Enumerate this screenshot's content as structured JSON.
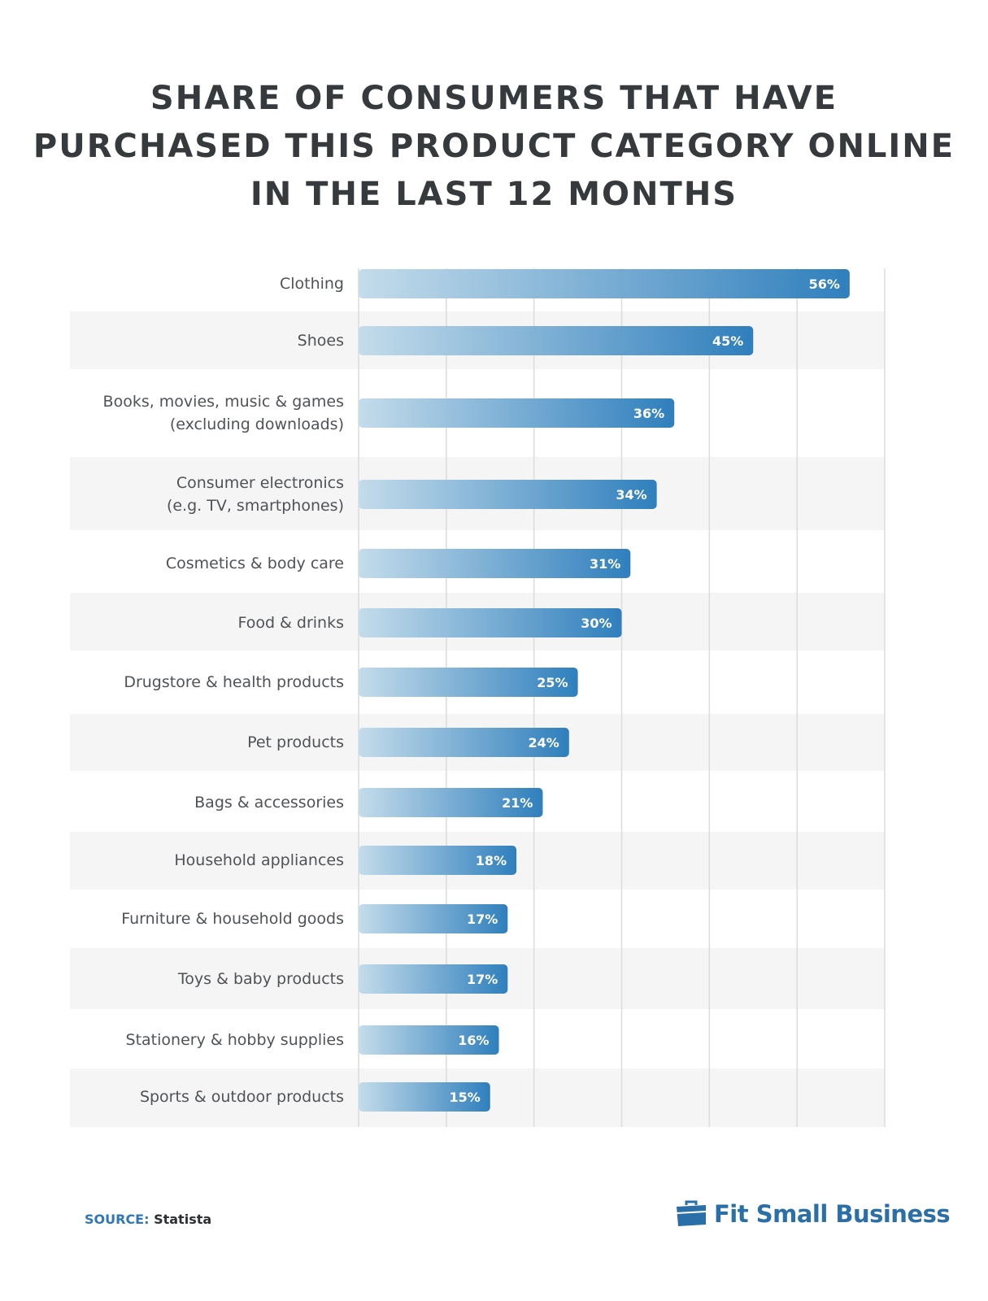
{
  "chart_data": {
    "type": "bar",
    "orientation": "horizontal",
    "title_lines": [
      "SHARE OF CONSUMERS THAT HAVE",
      "PURCHASED THIS PRODUCT CATEGORY ONLINE",
      "IN THE LAST 12 MONTHS"
    ],
    "categories": [
      [
        "Clothing"
      ],
      [
        "Shoes"
      ],
      [
        "Books, movies, music & games",
        "(excluding downloads)"
      ],
      [
        "Consumer electronics",
        "(e.g. TV, smartphones)"
      ],
      [
        "Cosmetics & body care"
      ],
      [
        "Food & drinks"
      ],
      [
        "Drugstore & health products"
      ],
      [
        "Pet products"
      ],
      [
        "Bags & accessories"
      ],
      [
        "Household appliances"
      ],
      [
        "Furniture & household goods"
      ],
      [
        "Toys & baby products"
      ],
      [
        "Stationery & hobby supplies"
      ],
      [
        "Sports & outdoor products"
      ]
    ],
    "values": [
      56,
      45,
      36,
      34,
      31,
      30,
      25,
      24,
      21,
      18,
      17,
      17,
      16,
      15
    ],
    "value_labels": [
      "56%",
      "45%",
      "36%",
      "34%",
      "31%",
      "30%",
      "25%",
      "24%",
      "21%",
      "18%",
      "17%",
      "17%",
      "16%",
      "15%"
    ],
    "xlim": [
      0,
      60
    ],
    "grid": true,
    "legend": "none",
    "colors": {
      "bar_start": "#c4dceb",
      "bar_end": "#2f7fbd",
      "band": "#f5f5f5",
      "grid": "#dcdcdc"
    }
  },
  "footer": {
    "source_key": "SOURCE:",
    "source_value": " Statista",
    "brand": "Fit Small Business",
    "brand_icon": "briefcase-icon"
  }
}
